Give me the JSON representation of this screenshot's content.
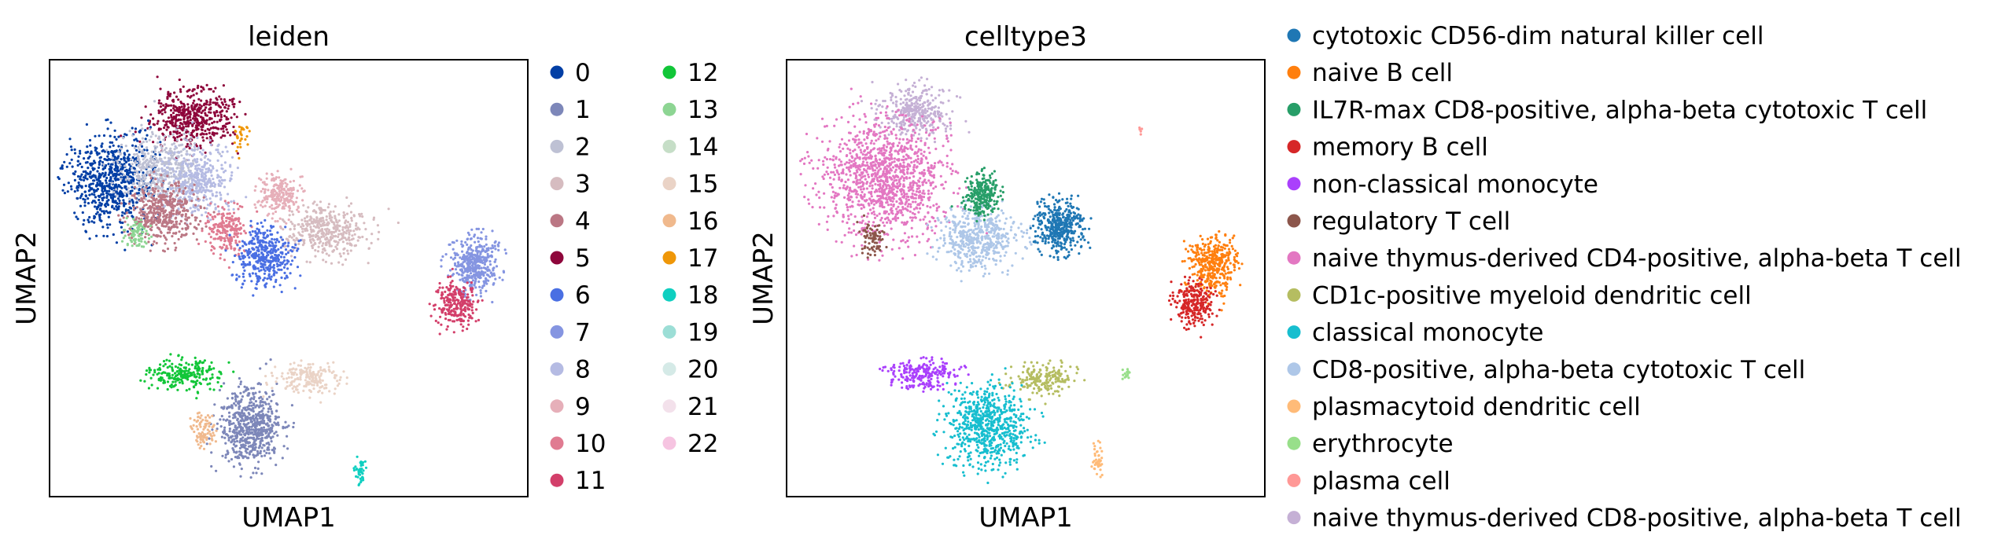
{
  "chart_data": [
    {
      "type": "scatter",
      "title": "leiden",
      "xlabel": "UMAP1",
      "ylabel": "UMAP2",
      "grid": false,
      "axis_ticks": false,
      "legend_position": "right, two columns",
      "legend": [
        {
          "label": "0",
          "color": "#023fa5"
        },
        {
          "label": "1",
          "color": "#7d87b9"
        },
        {
          "label": "2",
          "color": "#bec1d4"
        },
        {
          "label": "3",
          "color": "#d6bcc0"
        },
        {
          "label": "4",
          "color": "#bb7784"
        },
        {
          "label": "5",
          "color": "#8e063b"
        },
        {
          "label": "6",
          "color": "#4a6fe3"
        },
        {
          "label": "7",
          "color": "#8595e1"
        },
        {
          "label": "8",
          "color": "#b5bbe3"
        },
        {
          "label": "9",
          "color": "#e6afb9"
        },
        {
          "label": "10",
          "color": "#e07b91"
        },
        {
          "label": "11",
          "color": "#d33f6a"
        },
        {
          "label": "12",
          "color": "#11c638"
        },
        {
          "label": "13",
          "color": "#8dd593"
        },
        {
          "label": "14",
          "color": "#c6dec7"
        },
        {
          "label": "15",
          "color": "#ead3c6"
        },
        {
          "label": "16",
          "color": "#f0b98d"
        },
        {
          "label": "17",
          "color": "#ef9708"
        },
        {
          "label": "18",
          "color": "#0fcfc0"
        },
        {
          "label": "19",
          "color": "#9cded6"
        },
        {
          "label": "20",
          "color": "#d5eae7"
        },
        {
          "label": "21",
          "color": "#f3e1eb"
        },
        {
          "label": "22",
          "color": "#f6c4e1"
        }
      ],
      "clusters": [
        {
          "label": "5",
          "cx": 0.3,
          "cy": 0.13,
          "rx": 0.1,
          "ry": 0.08,
          "weight": 500
        },
        {
          "label": "0",
          "cx": 0.13,
          "cy": 0.28,
          "rx": 0.1,
          "ry": 0.13,
          "weight": 700
        },
        {
          "label": "2",
          "cx": 0.23,
          "cy": 0.25,
          "rx": 0.1,
          "ry": 0.1,
          "weight": 450
        },
        {
          "label": "8",
          "cx": 0.31,
          "cy": 0.28,
          "rx": 0.08,
          "ry": 0.09,
          "weight": 400
        },
        {
          "label": "4",
          "cx": 0.24,
          "cy": 0.35,
          "rx": 0.09,
          "ry": 0.08,
          "weight": 450
        },
        {
          "label": "13",
          "cx": 0.18,
          "cy": 0.4,
          "rx": 0.03,
          "ry": 0.04,
          "weight": 80
        },
        {
          "label": "10",
          "cx": 0.37,
          "cy": 0.39,
          "rx": 0.05,
          "ry": 0.06,
          "weight": 220
        },
        {
          "label": "9",
          "cx": 0.48,
          "cy": 0.31,
          "rx": 0.05,
          "ry": 0.06,
          "weight": 220
        },
        {
          "label": "3",
          "cx": 0.58,
          "cy": 0.39,
          "rx": 0.1,
          "ry": 0.07,
          "weight": 400
        },
        {
          "label": "6",
          "cx": 0.45,
          "cy": 0.45,
          "rx": 0.07,
          "ry": 0.08,
          "weight": 400
        },
        {
          "label": "17",
          "cx": 0.4,
          "cy": 0.18,
          "rx": 0.02,
          "ry": 0.05,
          "weight": 30
        },
        {
          "label": "7",
          "cx": 0.89,
          "cy": 0.47,
          "rx": 0.06,
          "ry": 0.08,
          "weight": 400
        },
        {
          "label": "11",
          "cx": 0.85,
          "cy": 0.56,
          "rx": 0.05,
          "ry": 0.06,
          "weight": 250
        },
        {
          "label": "12",
          "cx": 0.28,
          "cy": 0.72,
          "rx": 0.09,
          "ry": 0.04,
          "weight": 230
        },
        {
          "label": "1",
          "cx": 0.42,
          "cy": 0.84,
          "rx": 0.08,
          "ry": 0.11,
          "weight": 600
        },
        {
          "label": "16",
          "cx": 0.32,
          "cy": 0.85,
          "rx": 0.03,
          "ry": 0.05,
          "weight": 90
        },
        {
          "label": "15",
          "cx": 0.54,
          "cy": 0.73,
          "rx": 0.08,
          "ry": 0.04,
          "weight": 200
        },
        {
          "label": "18",
          "cx": 0.65,
          "cy": 0.94,
          "rx": 0.012,
          "ry": 0.035,
          "weight": 40
        }
      ]
    },
    {
      "type": "scatter",
      "title": "celltype3",
      "xlabel": "UMAP1",
      "ylabel": "UMAP2",
      "grid": false,
      "axis_ticks": false,
      "legend_position": "right, one column",
      "legend": [
        {
          "label": "cytotoxic CD56-dim natural killer cell",
          "color": "#1f77b4"
        },
        {
          "label": "naive B cell",
          "color": "#ff7f0e"
        },
        {
          "label": "IL7R-max CD8-positive, alpha-beta cytotoxic T cell",
          "color": "#279e68"
        },
        {
          "label": "memory B cell",
          "color": "#d62728"
        },
        {
          "label": "non-classical monocyte",
          "color": "#aa40fc"
        },
        {
          "label": "regulatory T cell",
          "color": "#8c564b"
        },
        {
          "label": "naive thymus-derived CD4-positive, alpha-beta T cell",
          "color": "#e377c2"
        },
        {
          "label": "CD1c-positive myeloid dendritic cell",
          "color": "#b5bd61"
        },
        {
          "label": "classical monocyte",
          "color": "#17becf"
        },
        {
          "label": "CD8-positive, alpha-beta cytotoxic T cell",
          "color": "#aec7e8"
        },
        {
          "label": "plasmacytoid dendritic cell",
          "color": "#ffbb78"
        },
        {
          "label": "erythrocyte",
          "color": "#98df8a"
        },
        {
          "label": "plasma cell",
          "color": "#ff9896"
        },
        {
          "label": "naive thymus-derived CD8-positive, alpha-beta T cell",
          "color": "#c5b0d5"
        }
      ],
      "clusters": [
        {
          "label": "naive thymus-derived CD8-positive, alpha-beta T cell",
          "cx": 0.27,
          "cy": 0.12,
          "rx": 0.09,
          "ry": 0.07,
          "weight": 350
        },
        {
          "label": "naive thymus-derived CD4-positive, alpha-beta T cell",
          "cx": 0.2,
          "cy": 0.27,
          "rx": 0.15,
          "ry": 0.16,
          "weight": 1200
        },
        {
          "label": "regulatory T cell",
          "cx": 0.18,
          "cy": 0.41,
          "rx": 0.03,
          "ry": 0.04,
          "weight": 80
        },
        {
          "label": "CD8-positive, alpha-beta cytotoxic T cell",
          "cx": 0.4,
          "cy": 0.41,
          "rx": 0.1,
          "ry": 0.08,
          "weight": 500
        },
        {
          "label": "IL7R-max CD8-positive, alpha-beta cytotoxic T cell",
          "cx": 0.41,
          "cy": 0.31,
          "rx": 0.04,
          "ry": 0.06,
          "weight": 250
        },
        {
          "label": "cytotoxic CD56-dim natural killer cell",
          "cx": 0.57,
          "cy": 0.38,
          "rx": 0.06,
          "ry": 0.07,
          "weight": 400
        },
        {
          "label": "naive B cell",
          "cx": 0.89,
          "cy": 0.47,
          "rx": 0.06,
          "ry": 0.08,
          "weight": 400
        },
        {
          "label": "memory B cell",
          "cx": 0.85,
          "cy": 0.56,
          "rx": 0.05,
          "ry": 0.06,
          "weight": 250
        },
        {
          "label": "non-classical monocyte",
          "cx": 0.28,
          "cy": 0.72,
          "rx": 0.09,
          "ry": 0.04,
          "weight": 230
        },
        {
          "label": "CD1c-positive myeloid dendritic cell",
          "cx": 0.54,
          "cy": 0.73,
          "rx": 0.08,
          "ry": 0.04,
          "weight": 200
        },
        {
          "label": "classical monocyte",
          "cx": 0.42,
          "cy": 0.84,
          "rx": 0.1,
          "ry": 0.11,
          "weight": 700
        },
        {
          "label": "plasmacytoid dendritic cell",
          "cx": 0.65,
          "cy": 0.92,
          "rx": 0.012,
          "ry": 0.045,
          "weight": 40
        },
        {
          "label": "erythrocyte",
          "cx": 0.71,
          "cy": 0.72,
          "rx": 0.01,
          "ry": 0.02,
          "weight": 15
        },
        {
          "label": "plasma cell",
          "cx": 0.74,
          "cy": 0.16,
          "rx": 0.005,
          "ry": 0.01,
          "weight": 5
        }
      ]
    }
  ]
}
